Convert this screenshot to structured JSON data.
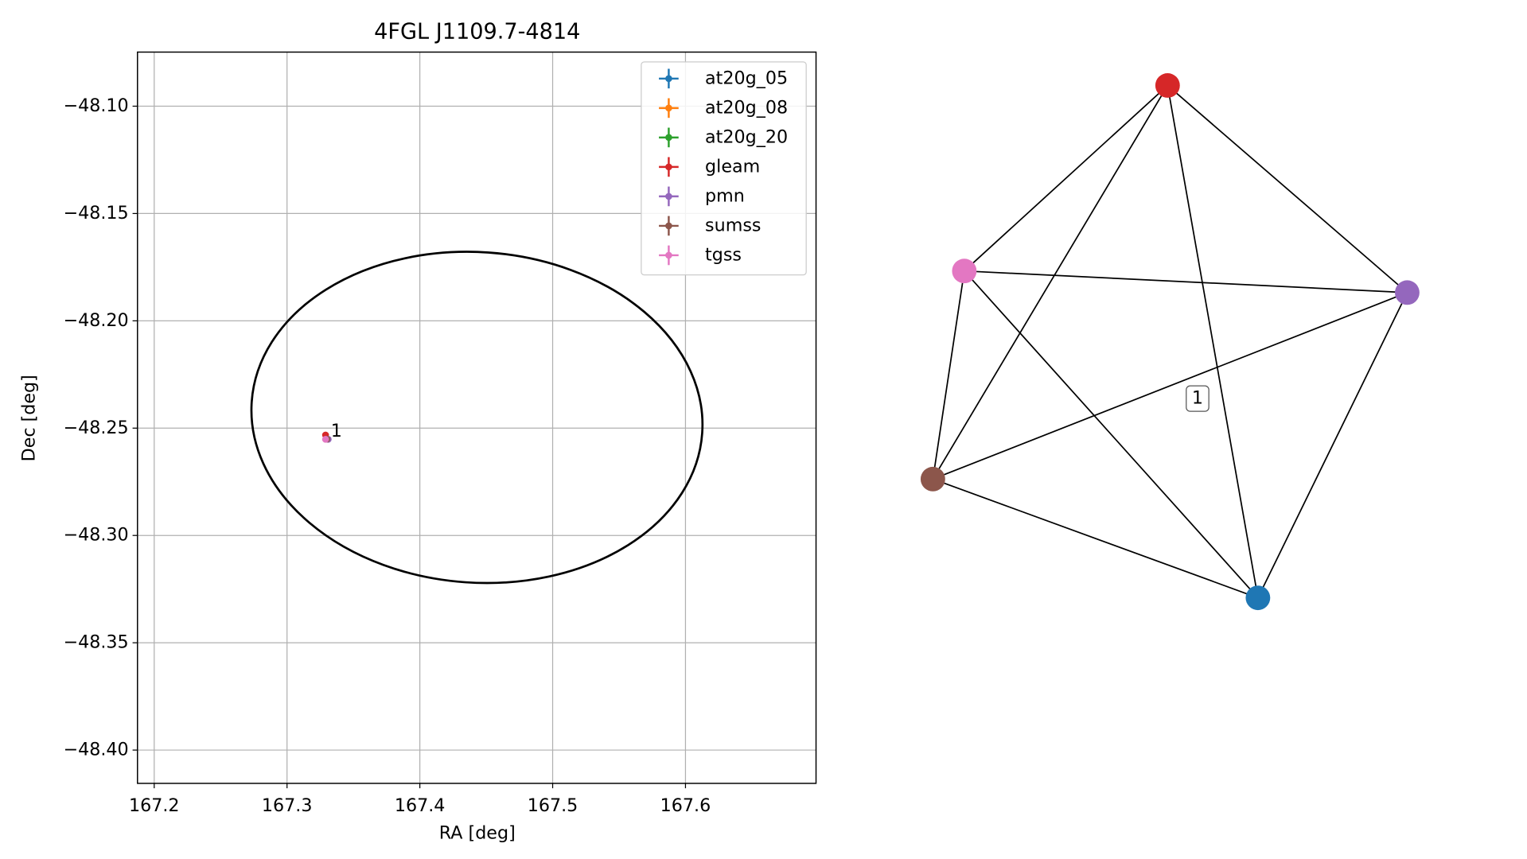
{
  "chart_data": [
    {
      "type": "scatter",
      "title": "4FGL J1109.7-4814",
      "xlabel": "RA [deg]",
      "ylabel": "Dec [deg]",
      "xlim": [
        167.1874,
        167.6983
      ],
      "ylim": [
        -48.4155,
        -48.0748
      ],
      "xticks": [
        167.2,
        167.3,
        167.4,
        167.5,
        167.6
      ],
      "yticks": [
        {
          "value": -48.1,
          "label": "−48.10"
        },
        {
          "value": -48.15,
          "label": "−48.15"
        },
        {
          "value": -48.2,
          "label": "−48.20"
        },
        {
          "value": -48.25,
          "label": "−48.25"
        },
        {
          "value": -48.3,
          "label": "−48.30"
        },
        {
          "value": -48.35,
          "label": "−48.35"
        },
        {
          "value": -48.4,
          "label": "−48.40"
        }
      ],
      "grid": true,
      "legend": "upper right",
      "series": [
        {
          "name": "at20g_05",
          "color": "#1f77b4",
          "x": [
            167.33
          ],
          "y": [
            -48.255
          ]
        },
        {
          "name": "at20g_08",
          "color": "#ff7f0e",
          "x": [
            167.33
          ],
          "y": [
            -48.255
          ]
        },
        {
          "name": "at20g_20",
          "color": "#2ca02c",
          "x": [
            167.33
          ],
          "y": [
            -48.255
          ]
        },
        {
          "name": "gleam",
          "color": "#d62728",
          "x": [
            167.329
          ],
          "y": [
            -48.2532
          ]
        },
        {
          "name": "pmn",
          "color": "#9467bd",
          "x": [
            167.331
          ],
          "y": [
            -48.2552
          ]
        },
        {
          "name": "sumss",
          "color": "#8c564b",
          "x": [
            167.33
          ],
          "y": [
            -48.2551
          ]
        },
        {
          "name": "tgss",
          "color": "#e377c2",
          "x": [
            167.329
          ],
          "y": [
            -48.2552
          ]
        }
      ],
      "ellipse": {
        "center_x": 167.443,
        "center_y": -48.245,
        "width": 0.34,
        "height": 0.154,
        "angle": 4
      },
      "annotation": {
        "text": "1",
        "x": 167.333,
        "y": -48.2515
      }
    },
    {
      "type": "network",
      "nodes": [
        {
          "color": "#d62728"
        },
        {
          "color": "#e377c2"
        },
        {
          "color": "#9467bd"
        },
        {
          "color": "#8c564b"
        },
        {
          "color": "#1f77b4"
        }
      ],
      "edges": [
        [
          0,
          1
        ],
        [
          0,
          2
        ],
        [
          0,
          3
        ],
        [
          0,
          4
        ],
        [
          1,
          2
        ],
        [
          1,
          3
        ],
        [
          1,
          4
        ],
        [
          2,
          3
        ],
        [
          2,
          4
        ],
        [
          3,
          4
        ]
      ],
      "label": "1"
    }
  ]
}
